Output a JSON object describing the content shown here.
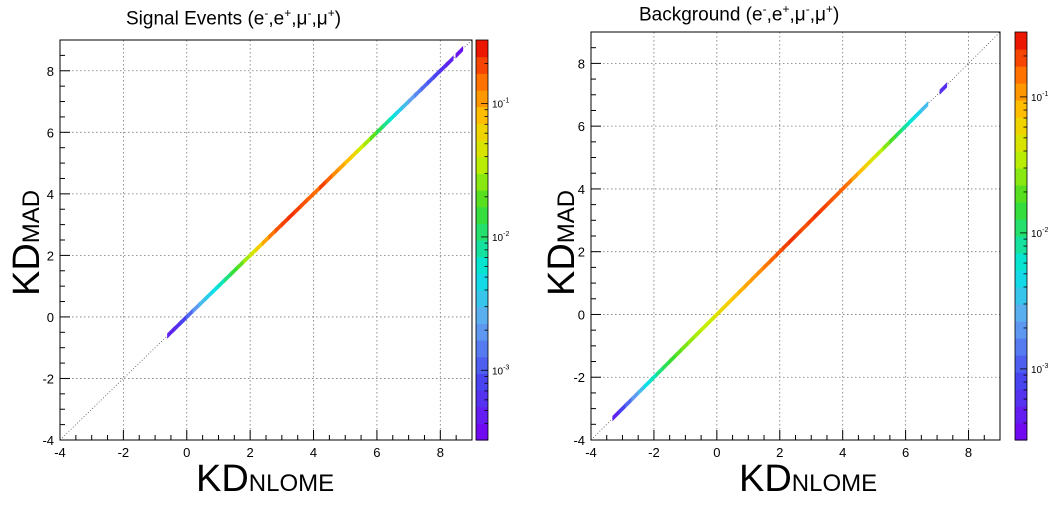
{
  "chart_data": [
    {
      "type": "heatmap",
      "title": "Signal Events (e⁻,e⁺,μ⁻,μ⁺)",
      "title_parts": {
        "main": "Signal Events (e",
        "s1": "-",
        "c1": ",e",
        "s2": "+",
        "c2": ",μ",
        "s3": "-",
        "c3": ",μ",
        "s4": "+",
        "end": ")"
      },
      "xlabel": {
        "main": "KD",
        "sub": "NLOME"
      },
      "ylabel": {
        "main": "KD",
        "sub": "MAD"
      },
      "xlim": [
        -4,
        9
      ],
      "ylim": [
        -4,
        9
      ],
      "xticks": [
        "-4",
        "-2",
        "0",
        "2",
        "4",
        "6",
        "8"
      ],
      "yticks": [
        "-4",
        "-2",
        "0",
        "2",
        "4",
        "6",
        "8"
      ],
      "grid": true,
      "diagonal": true,
      "colorbar": {
        "scale": "log",
        "range": [
          0.0003,
          0.3
        ],
        "ticks": [
          {
            "v": 0.001,
            "label": "10",
            "exp": "-3"
          },
          {
            "v": 0.01,
            "label": "10",
            "exp": "-2"
          },
          {
            "v": 0.1,
            "label": "10",
            "exp": "-1"
          }
        ]
      },
      "x": [
        -0.5,
        -0.3,
        -0.1,
        0.1,
        0.3,
        0.5,
        0.7,
        0.9,
        1.1,
        1.3,
        1.5,
        1.7,
        1.9,
        2.1,
        2.3,
        2.5,
        2.7,
        2.9,
        3.1,
        3.3,
        3.5,
        3.7,
        3.9,
        4.1,
        4.3,
        4.5,
        4.7,
        4.9,
        5.1,
        5.3,
        5.5,
        5.7,
        5.9,
        6.1,
        6.3,
        6.5,
        6.7,
        6.9,
        7.1,
        7.3,
        7.5,
        7.7,
        7.9,
        8.1,
        8.3,
        8.6
      ],
      "y": [
        -0.5,
        -0.3,
        -0.1,
        0.1,
        0.3,
        0.5,
        0.7,
        0.9,
        1.1,
        1.3,
        1.5,
        1.7,
        1.9,
        2.1,
        2.3,
        2.5,
        2.7,
        2.9,
        3.1,
        3.3,
        3.5,
        3.7,
        3.9,
        4.1,
        4.3,
        4.5,
        4.7,
        4.9,
        5.1,
        5.3,
        5.5,
        5.7,
        5.9,
        6.1,
        6.3,
        6.5,
        6.7,
        6.9,
        7.1,
        7.3,
        7.5,
        7.7,
        7.9,
        8.1,
        8.3,
        8.6
      ],
      "z": [
        0.0005,
        0.0006,
        0.0008,
        0.0012,
        0.002,
        0.003,
        0.004,
        0.005,
        0.007,
        0.01,
        0.015,
        0.02,
        0.03,
        0.045,
        0.07,
        0.1,
        0.14,
        0.18,
        0.2,
        0.22,
        0.2,
        0.18,
        0.16,
        0.15,
        0.2,
        0.16,
        0.12,
        0.1,
        0.08,
        0.06,
        0.04,
        0.03,
        0.02,
        0.013,
        0.009,
        0.006,
        0.004,
        0.003,
        0.0022,
        0.0016,
        0.0012,
        0.001,
        0.0008,
        0.0006,
        0.0005,
        0.0004
      ]
    },
    {
      "type": "heatmap",
      "title": "Background (e⁻,e⁺,μ⁻,μ⁺)",
      "title_parts": {
        "main": "Background (e",
        "s1": "-",
        "c1": ",e",
        "s2": "+",
        "c2": ",μ",
        "s3": "-",
        "c3": ",μ",
        "s4": "+",
        "end": ")"
      },
      "xlabel": {
        "main": "KD",
        "sub": "NLOME"
      },
      "ylabel": {
        "main": "KD",
        "sub": "MAD"
      },
      "xlim": [
        -4,
        9
      ],
      "ylim": [
        -4,
        9
      ],
      "xticks": [
        "-4",
        "-2",
        "0",
        "2",
        "4",
        "6",
        "8"
      ],
      "yticks": [
        "-4",
        "-2",
        "0",
        "2",
        "4",
        "6",
        "8"
      ],
      "grid": true,
      "diagonal": true,
      "colorbar": {
        "scale": "log",
        "range": [
          0.0003,
          0.3
        ],
        "ticks": [
          {
            "v": 0.001,
            "label": "10",
            "exp": "-3"
          },
          {
            "v": 0.01,
            "label": "10",
            "exp": "-2"
          },
          {
            "v": 0.1,
            "label": "10",
            "exp": "-1"
          }
        ]
      },
      "x": [
        -3.2,
        -3.0,
        -2.8,
        -2.6,
        -2.4,
        -2.2,
        -2.0,
        -1.8,
        -1.6,
        -1.4,
        -1.2,
        -1.0,
        -0.8,
        -0.6,
        -0.4,
        -0.2,
        0.0,
        0.2,
        0.4,
        0.6,
        0.8,
        1.0,
        1.2,
        1.4,
        1.6,
        1.8,
        2.0,
        2.2,
        2.4,
        2.6,
        2.8,
        3.0,
        3.2,
        3.4,
        3.6,
        3.8,
        4.0,
        4.2,
        4.4,
        4.6,
        4.8,
        5.0,
        5.2,
        5.4,
        5.6,
        5.8,
        6.0,
        6.2,
        6.4,
        6.6,
        7.2
      ],
      "y": [
        -3.2,
        -3.0,
        -2.8,
        -2.6,
        -2.4,
        -2.2,
        -2.0,
        -1.8,
        -1.6,
        -1.4,
        -1.2,
        -1.0,
        -0.8,
        -0.6,
        -0.4,
        -0.2,
        0.0,
        0.2,
        0.4,
        0.6,
        0.8,
        1.0,
        1.2,
        1.4,
        1.6,
        1.8,
        2.0,
        2.2,
        2.4,
        2.6,
        2.8,
        3.0,
        3.2,
        3.4,
        3.6,
        3.8,
        4.0,
        4.2,
        4.4,
        4.6,
        4.8,
        5.0,
        5.2,
        5.4,
        5.6,
        5.8,
        6.0,
        6.2,
        6.4,
        6.6,
        7.2
      ],
      "z": [
        0.0005,
        0.0008,
        0.0012,
        0.002,
        0.003,
        0.005,
        0.007,
        0.01,
        0.013,
        0.016,
        0.02,
        0.024,
        0.028,
        0.032,
        0.036,
        0.04,
        0.05,
        0.06,
        0.07,
        0.08,
        0.09,
        0.1,
        0.11,
        0.12,
        0.14,
        0.16,
        0.18,
        0.2,
        0.22,
        0.2,
        0.18,
        0.2,
        0.22,
        0.2,
        0.18,
        0.17,
        0.16,
        0.14,
        0.1,
        0.08,
        0.06,
        0.045,
        0.035,
        0.025,
        0.018,
        0.012,
        0.008,
        0.006,
        0.0045,
        0.003,
        0.0006
      ]
    }
  ]
}
